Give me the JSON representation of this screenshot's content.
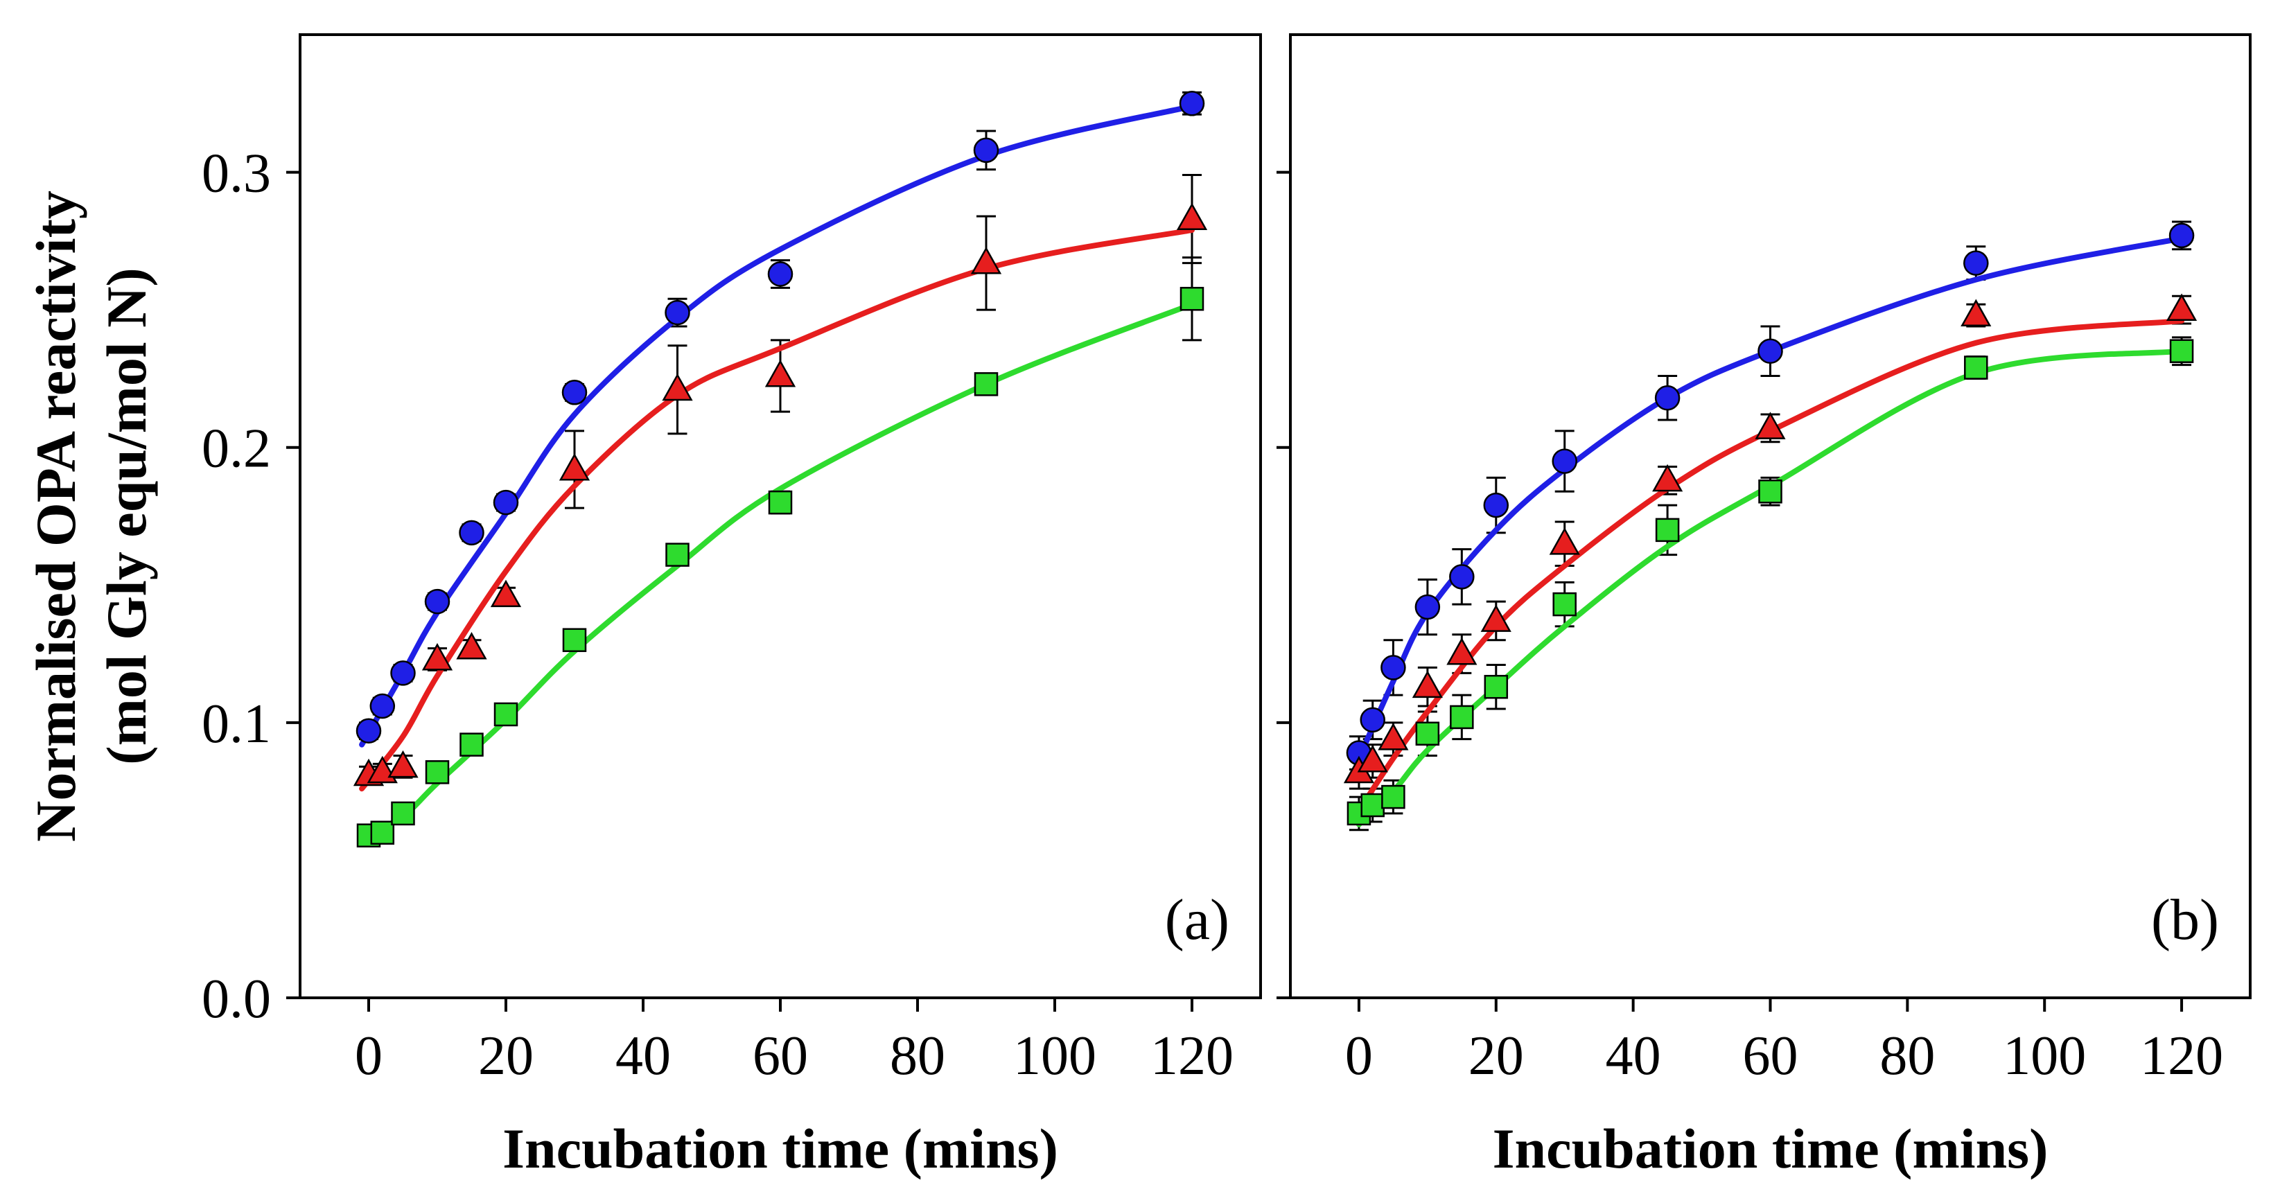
{
  "figure": {
    "ylabel_line1": "Normalised OPA reactivity",
    "ylabel_line2": "(mol Gly equ/mol N)"
  },
  "chart_data": [
    {
      "type": "scatter",
      "panel": "(a)",
      "xlabel": "Incubation time (mins)",
      "ylabel": "Normalised OPA reactivity (mol Gly equ/mol N)",
      "xlim": [
        -10,
        130
      ],
      "ylim": [
        0.0,
        0.35
      ],
      "xticks": [
        0,
        20,
        40,
        60,
        80,
        100,
        120
      ],
      "yticks": [
        0.0,
        0.1,
        0.2,
        0.3
      ],
      "ytick_labels": [
        "0.0",
        "0.1",
        "0.2",
        "0.3"
      ],
      "series": [
        {
          "name": "blue circles",
          "marker": "circle",
          "color": "#1f1fe6",
          "x": [
            0,
            2,
            5,
            10,
            15,
            20,
            30,
            45,
            60,
            90,
            120
          ],
          "y": [
            0.097,
            0.106,
            0.118,
            0.144,
            0.169,
            0.18,
            0.22,
            0.249,
            0.263,
            0.308,
            0.325
          ],
          "err": [
            0.003,
            0.003,
            0.003,
            0.003,
            0.003,
            0.003,
            0.003,
            0.005,
            0.005,
            0.007,
            0.004
          ],
          "fit_x": [
            -1,
            5,
            10,
            20,
            30,
            45,
            60,
            90,
            120
          ],
          "fit_y": [
            0.092,
            0.118,
            0.14,
            0.176,
            0.212,
            0.247,
            0.272,
            0.306,
            0.324
          ]
        },
        {
          "name": "red triangles",
          "marker": "triangle",
          "color": "#e61e1e",
          "x": [
            0,
            2,
            5,
            10,
            15,
            20,
            30,
            45,
            60,
            90,
            120
          ],
          "y": [
            0.081,
            0.082,
            0.084,
            0.123,
            0.127,
            0.146,
            0.192,
            0.221,
            0.226,
            0.267,
            0.283
          ],
          "err": [
            0.003,
            0.003,
            0.004,
            0.004,
            0.003,
            0.003,
            0.014,
            0.016,
            0.013,
            0.017,
            0.016
          ],
          "fit_x": [
            -1,
            5,
            10,
            20,
            30,
            45,
            60,
            90,
            120
          ],
          "fit_y": [
            0.076,
            0.095,
            0.117,
            0.155,
            0.186,
            0.219,
            0.236,
            0.265,
            0.279
          ]
        },
        {
          "name": "green squares",
          "marker": "square",
          "color": "#2edb2e",
          "x": [
            0,
            2,
            5,
            10,
            15,
            20,
            30,
            45,
            60,
            90,
            120
          ],
          "y": [
            0.059,
            0.06,
            0.067,
            0.082,
            0.092,
            0.103,
            0.13,
            0.161,
            0.18,
            0.223,
            0.254
          ],
          "err": [
            0.002,
            0.002,
            0.002,
            0.002,
            0.002,
            0.002,
            0.002,
            0.003,
            0.004,
            0.003,
            0.015
          ],
          "fit_x": [
            -1,
            5,
            10,
            20,
            30,
            45,
            60,
            90,
            120
          ],
          "fit_y": [
            0.058,
            0.066,
            0.078,
            0.101,
            0.126,
            0.157,
            0.185,
            0.223,
            0.252
          ]
        }
      ]
    },
    {
      "type": "scatter",
      "panel": "(b)",
      "xlabel": "Incubation time (mins)",
      "ylabel": "Normalised OPA reactivity (mol Gly equ/mol N)",
      "xlim": [
        -10,
        130
      ],
      "ylim": [
        0.0,
        0.35
      ],
      "xticks": [
        0,
        20,
        40,
        60,
        80,
        100,
        120
      ],
      "yticks": [
        0.0,
        0.1,
        0.2,
        0.3
      ],
      "ytick_labels": [],
      "series": [
        {
          "name": "blue circles",
          "marker": "circle",
          "color": "#1f1fe6",
          "x": [
            0,
            2,
            5,
            10,
            15,
            20,
            30,
            45,
            60,
            90,
            120
          ],
          "y": [
            0.089,
            0.101,
            0.12,
            0.142,
            0.153,
            0.179,
            0.195,
            0.218,
            0.235,
            0.267,
            0.277
          ],
          "err": [
            0.006,
            0.007,
            0.01,
            0.01,
            0.01,
            0.01,
            0.011,
            0.008,
            0.009,
            0.006,
            0.005
          ],
          "fit_x": [
            0,
            5,
            10,
            20,
            30,
            45,
            60,
            90,
            120
          ],
          "fit_y": [
            0.087,
            0.115,
            0.14,
            0.17,
            0.192,
            0.218,
            0.235,
            0.261,
            0.276
          ]
        },
        {
          "name": "red triangles",
          "marker": "triangle",
          "color": "#e61e1e",
          "x": [
            0,
            2,
            5,
            10,
            15,
            20,
            30,
            45,
            60,
            90,
            120
          ],
          "y": [
            0.082,
            0.086,
            0.094,
            0.113,
            0.125,
            0.137,
            0.165,
            0.188,
            0.207,
            0.248,
            0.25
          ],
          "err": [
            0.006,
            0.006,
            0.006,
            0.007,
            0.007,
            0.007,
            0.008,
            0.005,
            0.005,
            0.004,
            0.005
          ],
          "fit_x": [
            0,
            5,
            10,
            20,
            30,
            45,
            60,
            90,
            120
          ],
          "fit_y": [
            0.068,
            0.087,
            0.104,
            0.135,
            0.157,
            0.185,
            0.206,
            0.238,
            0.246
          ]
        },
        {
          "name": "green squares",
          "marker": "square",
          "color": "#2edb2e",
          "x": [
            0,
            2,
            5,
            10,
            15,
            20,
            30,
            45,
            60,
            90,
            120
          ],
          "y": [
            0.067,
            0.07,
            0.073,
            0.096,
            0.102,
            0.113,
            0.143,
            0.17,
            0.184,
            0.229,
            0.235
          ],
          "err": [
            0.006,
            0.006,
            0.006,
            0.008,
            0.008,
            0.008,
            0.008,
            0.009,
            0.005,
            0.004,
            0.005
          ],
          "fit_x": [
            0,
            5,
            10,
            20,
            30,
            45,
            60,
            90,
            120
          ],
          "fit_y": [
            0.063,
            0.075,
            0.09,
            0.113,
            0.135,
            0.164,
            0.186,
            0.227,
            0.235
          ]
        }
      ]
    }
  ]
}
